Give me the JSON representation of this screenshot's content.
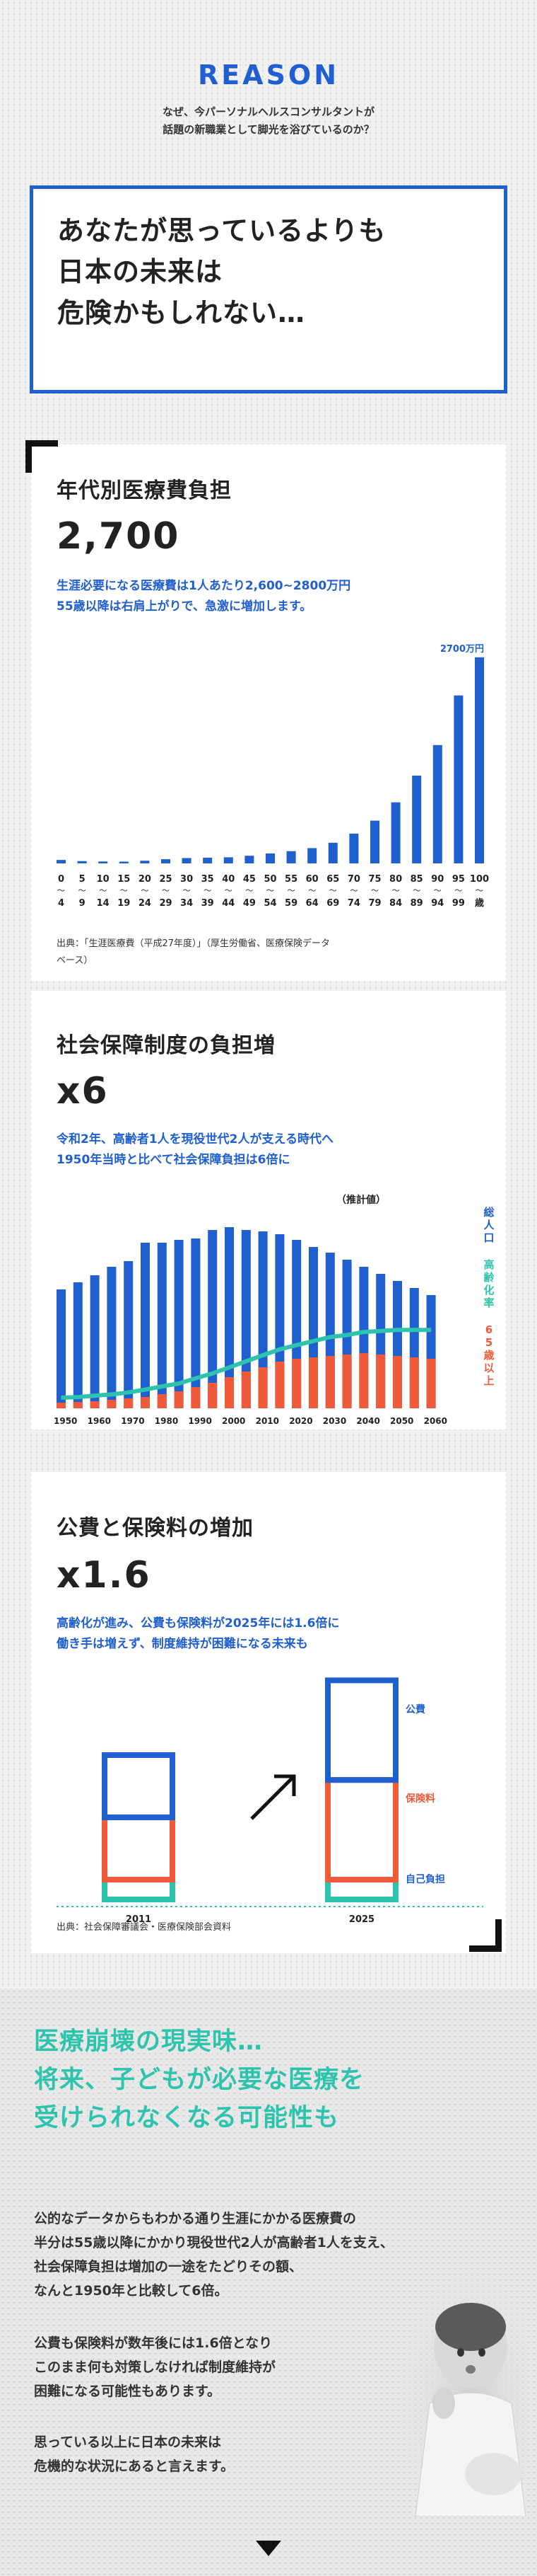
{
  "hero": {
    "title": "REASON",
    "subtitle_lines": [
      "なぜ、今パーソナルヘルスコンサルタントが",
      "話題の新職業として脚光を浴びているのか？"
    ],
    "box_lines": [
      "あなたが思っているよりも",
      "日本の未来は",
      "危険かもしれない…"
    ]
  },
  "card1": {
    "title": "年代別医療費負担",
    "big": "2,700",
    "desc_lines": [
      "生涯必要になる医療費は1人あたり2,600~2800万円",
      "55歳以降は右肩上がりで、急激に増加します。"
    ],
    "source_lines": [
      "出典：「生涯医療費（平成27年度）」（厚生労働省、医療保険データ",
      "ベース）"
    ]
  },
  "card2": {
    "title": "社会保障制度の負担増",
    "big": "x6",
    "desc_lines": [
      "令和2年、高齢者1人を現役世代2人が支える時代へ",
      "1950年当時と比べて社会保障負担は6倍に"
    ]
  },
  "card3": {
    "title": "公費と保険料の増加",
    "big": "x1.6",
    "desc_lines": [
      "高齢化が進み、公費も保険料が2025年には1.6倍に",
      "働き手は増えず、制度維持が困難になる未来も"
    ],
    "source": "出典：社会保障審議会・医療保険部会資料"
  },
  "bottom": {
    "head_lines": [
      "医療崩壊の現実味…",
      "将来、子どもが必要な医療を",
      "受けられなくなる可能性も"
    ],
    "para1": [
      "公的なデータからもわかる通り生涯にかかる医療費の",
      "半分は55歳以降にかかり現役世代2人が高齢者1人を支え、",
      "社会保障負担は増加の一途をたどりその額、",
      "なんと1950年と比較して6倍。"
    ],
    "para2": [
      "公費も保険料が数年後には1.6倍となり",
      "このまま何も対策しなければ制度維持が",
      "困難になる可能性もあります。"
    ],
    "para3": [
      "思っている以上に日本の未来は",
      "危機的な状況にあると言えます。"
    ]
  },
  "colors": {
    "blue": "#1f5fd0",
    "red": "#ef5a3a",
    "teal": "#2ec3ad"
  },
  "chart_data": [
    {
      "type": "bar",
      "categories_top": [
        "0",
        "5",
        "10",
        "15",
        "20",
        "25",
        "30",
        "35",
        "40",
        "45",
        "50",
        "55",
        "60",
        "65",
        "70",
        "75",
        "80",
        "85",
        "90",
        "95",
        "100"
      ],
      "categories_bottom": [
        "4",
        "9",
        "14",
        "19",
        "24",
        "29",
        "34",
        "39",
        "44",
        "49",
        "54",
        "59",
        "64",
        "69",
        "74",
        "79",
        "84",
        "89",
        "94",
        "99",
        "歳"
      ],
      "values": [
        45,
        30,
        25,
        23,
        35,
        55,
        70,
        75,
        80,
        100,
        130,
        160,
        200,
        270,
        390,
        560,
        800,
        1150,
        1550,
        2200,
        2700
      ],
      "annotation": "2700万円",
      "xlabel": "",
      "ylabel": "",
      "ylim": [
        0,
        2800
      ],
      "grid": false
    },
    {
      "type": "bar",
      "x_labels": [
        "1950",
        "1960",
        "1970",
        "1980",
        "1990",
        "2000",
        "2010",
        "2020",
        "2030",
        "2040",
        "2050",
        "2060"
      ],
      "series": [
        {
          "name": "総人口",
          "values": [
            84,
            89,
            94,
            100,
            104,
            117,
            117,
            119,
            120,
            126,
            128,
            126,
            125,
            123,
            119,
            114,
            110,
            105,
            100,
            95,
            90,
            85,
            80
          ]
        },
        {
          "name": "65歳以上",
          "values": [
            4,
            4.5,
            5,
            6,
            7,
            8,
            10,
            12,
            15,
            18,
            22,
            26,
            29,
            33,
            35,
            36,
            37,
            38,
            39,
            38,
            37,
            36,
            35
          ]
        },
        {
          "name": "高齢化率",
          "values": [
            5,
            5.3,
            6,
            6.6,
            7.6,
            9,
            10.6,
            12,
            14.6,
            17,
            20,
            23,
            26,
            28.9,
            31,
            33,
            35,
            36,
            37.5,
            38,
            38.5,
            38.5,
            38.5
          ]
        }
      ],
      "annotation": "（推計値）"
    },
    {
      "type": "bar",
      "categories": [
        "2011",
        "2025"
      ],
      "series": [
        {
          "name": "公費",
          "values": [
            1,
            1.6
          ]
        },
        {
          "name": "保険料",
          "values": [
            1,
            1.6
          ]
        },
        {
          "name": "自己負担",
          "values": [
            0.35,
            0.35
          ]
        }
      ]
    }
  ]
}
